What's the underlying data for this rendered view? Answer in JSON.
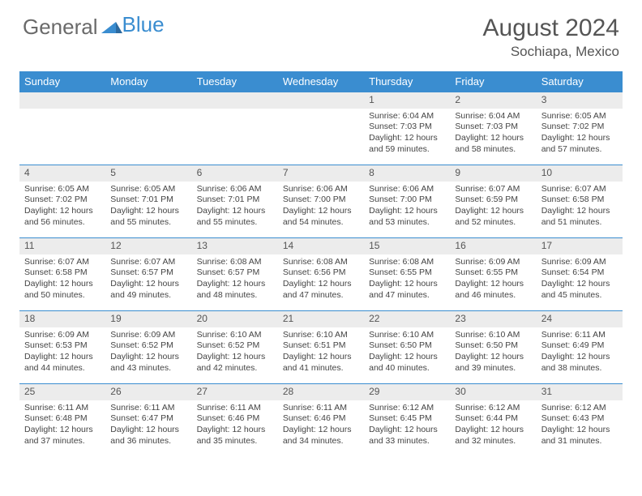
{
  "brand": {
    "part1": "General",
    "part2": "Blue"
  },
  "title": "August 2024",
  "location": "Sochiapa, Mexico",
  "colors": {
    "header_bg": "#3a8dd0",
    "header_text": "#ffffff",
    "daynum_bg": "#ececec",
    "border": "#3a8dd0",
    "text": "#444444"
  },
  "day_headers": [
    "Sunday",
    "Monday",
    "Tuesday",
    "Wednesday",
    "Thursday",
    "Friday",
    "Saturday"
  ],
  "weeks": [
    [
      null,
      null,
      null,
      null,
      {
        "n": "1",
        "sr": "Sunrise: 6:04 AM",
        "ss": "Sunset: 7:03 PM",
        "dl": "Daylight: 12 hours and 59 minutes."
      },
      {
        "n": "2",
        "sr": "Sunrise: 6:04 AM",
        "ss": "Sunset: 7:03 PM",
        "dl": "Daylight: 12 hours and 58 minutes."
      },
      {
        "n": "3",
        "sr": "Sunrise: 6:05 AM",
        "ss": "Sunset: 7:02 PM",
        "dl": "Daylight: 12 hours and 57 minutes."
      }
    ],
    [
      {
        "n": "4",
        "sr": "Sunrise: 6:05 AM",
        "ss": "Sunset: 7:02 PM",
        "dl": "Daylight: 12 hours and 56 minutes."
      },
      {
        "n": "5",
        "sr": "Sunrise: 6:05 AM",
        "ss": "Sunset: 7:01 PM",
        "dl": "Daylight: 12 hours and 55 minutes."
      },
      {
        "n": "6",
        "sr": "Sunrise: 6:06 AM",
        "ss": "Sunset: 7:01 PM",
        "dl": "Daylight: 12 hours and 55 minutes."
      },
      {
        "n": "7",
        "sr": "Sunrise: 6:06 AM",
        "ss": "Sunset: 7:00 PM",
        "dl": "Daylight: 12 hours and 54 minutes."
      },
      {
        "n": "8",
        "sr": "Sunrise: 6:06 AM",
        "ss": "Sunset: 7:00 PM",
        "dl": "Daylight: 12 hours and 53 minutes."
      },
      {
        "n": "9",
        "sr": "Sunrise: 6:07 AM",
        "ss": "Sunset: 6:59 PM",
        "dl": "Daylight: 12 hours and 52 minutes."
      },
      {
        "n": "10",
        "sr": "Sunrise: 6:07 AM",
        "ss": "Sunset: 6:58 PM",
        "dl": "Daylight: 12 hours and 51 minutes."
      }
    ],
    [
      {
        "n": "11",
        "sr": "Sunrise: 6:07 AM",
        "ss": "Sunset: 6:58 PM",
        "dl": "Daylight: 12 hours and 50 minutes."
      },
      {
        "n": "12",
        "sr": "Sunrise: 6:07 AM",
        "ss": "Sunset: 6:57 PM",
        "dl": "Daylight: 12 hours and 49 minutes."
      },
      {
        "n": "13",
        "sr": "Sunrise: 6:08 AM",
        "ss": "Sunset: 6:57 PM",
        "dl": "Daylight: 12 hours and 48 minutes."
      },
      {
        "n": "14",
        "sr": "Sunrise: 6:08 AM",
        "ss": "Sunset: 6:56 PM",
        "dl": "Daylight: 12 hours and 47 minutes."
      },
      {
        "n": "15",
        "sr": "Sunrise: 6:08 AM",
        "ss": "Sunset: 6:55 PM",
        "dl": "Daylight: 12 hours and 47 minutes."
      },
      {
        "n": "16",
        "sr": "Sunrise: 6:09 AM",
        "ss": "Sunset: 6:55 PM",
        "dl": "Daylight: 12 hours and 46 minutes."
      },
      {
        "n": "17",
        "sr": "Sunrise: 6:09 AM",
        "ss": "Sunset: 6:54 PM",
        "dl": "Daylight: 12 hours and 45 minutes."
      }
    ],
    [
      {
        "n": "18",
        "sr": "Sunrise: 6:09 AM",
        "ss": "Sunset: 6:53 PM",
        "dl": "Daylight: 12 hours and 44 minutes."
      },
      {
        "n": "19",
        "sr": "Sunrise: 6:09 AM",
        "ss": "Sunset: 6:52 PM",
        "dl": "Daylight: 12 hours and 43 minutes."
      },
      {
        "n": "20",
        "sr": "Sunrise: 6:10 AM",
        "ss": "Sunset: 6:52 PM",
        "dl": "Daylight: 12 hours and 42 minutes."
      },
      {
        "n": "21",
        "sr": "Sunrise: 6:10 AM",
        "ss": "Sunset: 6:51 PM",
        "dl": "Daylight: 12 hours and 41 minutes."
      },
      {
        "n": "22",
        "sr": "Sunrise: 6:10 AM",
        "ss": "Sunset: 6:50 PM",
        "dl": "Daylight: 12 hours and 40 minutes."
      },
      {
        "n": "23",
        "sr": "Sunrise: 6:10 AM",
        "ss": "Sunset: 6:50 PM",
        "dl": "Daylight: 12 hours and 39 minutes."
      },
      {
        "n": "24",
        "sr": "Sunrise: 6:11 AM",
        "ss": "Sunset: 6:49 PM",
        "dl": "Daylight: 12 hours and 38 minutes."
      }
    ],
    [
      {
        "n": "25",
        "sr": "Sunrise: 6:11 AM",
        "ss": "Sunset: 6:48 PM",
        "dl": "Daylight: 12 hours and 37 minutes."
      },
      {
        "n": "26",
        "sr": "Sunrise: 6:11 AM",
        "ss": "Sunset: 6:47 PM",
        "dl": "Daylight: 12 hours and 36 minutes."
      },
      {
        "n": "27",
        "sr": "Sunrise: 6:11 AM",
        "ss": "Sunset: 6:46 PM",
        "dl": "Daylight: 12 hours and 35 minutes."
      },
      {
        "n": "28",
        "sr": "Sunrise: 6:11 AM",
        "ss": "Sunset: 6:46 PM",
        "dl": "Daylight: 12 hours and 34 minutes."
      },
      {
        "n": "29",
        "sr": "Sunrise: 6:12 AM",
        "ss": "Sunset: 6:45 PM",
        "dl": "Daylight: 12 hours and 33 minutes."
      },
      {
        "n": "30",
        "sr": "Sunrise: 6:12 AM",
        "ss": "Sunset: 6:44 PM",
        "dl": "Daylight: 12 hours and 32 minutes."
      },
      {
        "n": "31",
        "sr": "Sunrise: 6:12 AM",
        "ss": "Sunset: 6:43 PM",
        "dl": "Daylight: 12 hours and 31 minutes."
      }
    ]
  ]
}
